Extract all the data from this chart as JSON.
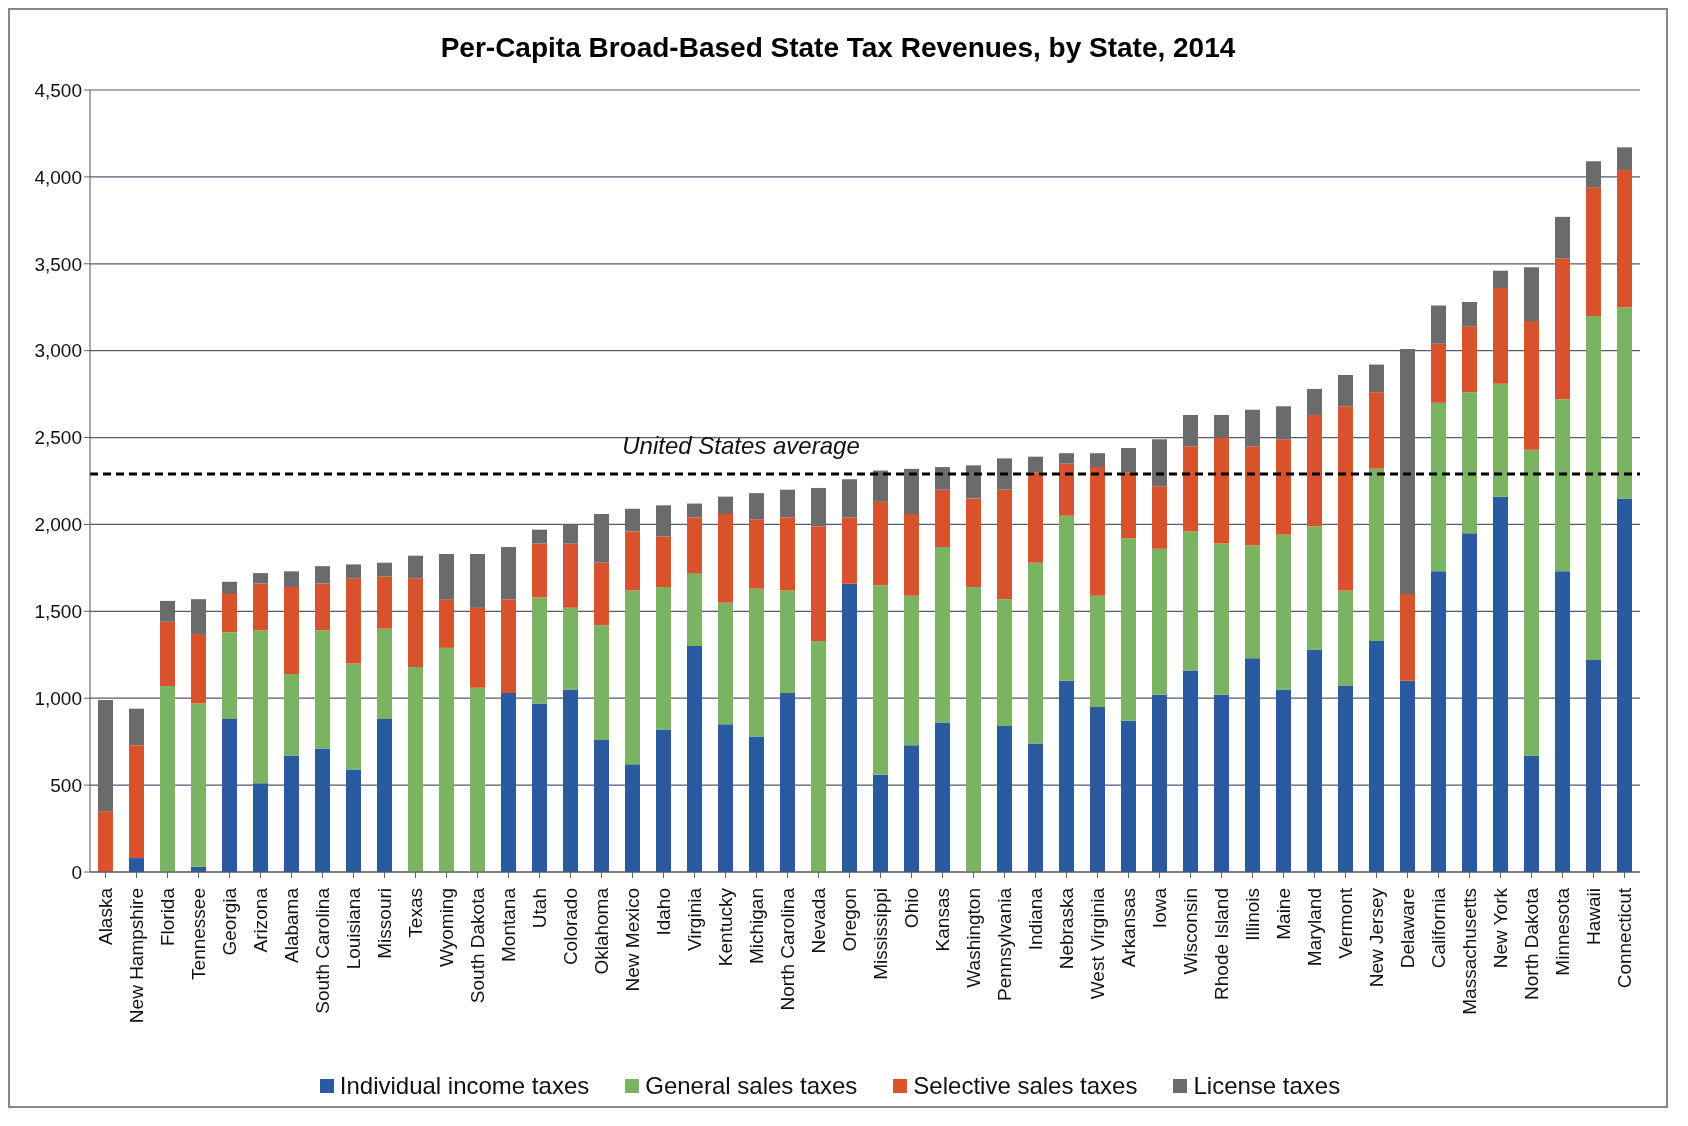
{
  "chart_data": {
    "type": "bar",
    "title": "Per-Capita Broad-Based State Tax Revenues, by State, 2014",
    "stacked": true,
    "grid": "y",
    "legend": "bottom",
    "categories": [
      "Alaska",
      "New Hampshire",
      "Florida",
      "Tennessee",
      "Georgia",
      "Arizona",
      "Alabama",
      "South Carolina",
      "Louisiana",
      "Missouri",
      "Texas",
      "Wyoming",
      "South Dakota",
      "Montana",
      "Utah",
      "Colorado",
      "Oklahoma",
      "New Mexico",
      "Idaho",
      "Virginia",
      "Kentucky",
      "Michigan",
      "North Carolina",
      "Nevada",
      "Oregon",
      "Mississippi",
      "Ohio",
      "Kansas",
      "Washington",
      "Pennsylvania",
      "Indiana",
      "Nebraska",
      "West Virginia",
      "Arkansas",
      "Iowa",
      "Wisconsin",
      "Rhode Island",
      "Illinois",
      "Maine",
      "Maryland",
      "Vermont",
      "New Jersey",
      "Delaware",
      "California",
      "Massachusetts",
      "New York",
      "North Dakota",
      "Minnesota",
      "Hawaii",
      "Connecticut"
    ],
    "ylim": [
      0,
      4500
    ],
    "yticks": [
      0,
      500,
      {
        "value": 1000,
        "label": "1,000"
      },
      {
        "value": 1500,
        "label": "1,500"
      },
      {
        "value": 2000,
        "label": "2,000"
      },
      {
        "value": 2500,
        "label": "2,500"
      },
      {
        "value": 3000,
        "label": "3,000"
      },
      {
        "value": 3500,
        "label": "3,500"
      },
      {
        "value": 4000,
        "label": "4,000"
      },
      {
        "value": 4500,
        "label": "4,500"
      }
    ],
    "series": [
      {
        "name": "Individual income taxes",
        "color": "#2a5aa0",
        "values": [
          0,
          80,
          0,
          30,
          880,
          510,
          670,
          710,
          590,
          880,
          0,
          0,
          0,
          1030,
          970,
          1050,
          760,
          620,
          820,
          1300,
          850,
          780,
          1030,
          0,
          1660,
          560,
          730,
          860,
          0,
          840,
          740,
          1100,
          950,
          870,
          1020,
          1160,
          1020,
          1230,
          1050,
          1280,
          1070,
          1330,
          1100,
          1730,
          1950,
          2160,
          670,
          1730,
          1220,
          2150
        ]
      },
      {
        "name": "General sales taxes",
        "color": "#7ab463",
        "values": [
          0,
          0,
          1070,
          940,
          500,
          880,
          470,
          680,
          610,
          520,
          1180,
          1290,
          1060,
          0,
          610,
          470,
          660,
          1000,
          820,
          420,
          700,
          850,
          590,
          1330,
          0,
          1090,
          860,
          1010,
          1640,
          730,
          1040,
          950,
          640,
          1050,
          840,
          800,
          870,
          650,
          890,
          710,
          550,
          990,
          0,
          970,
          810,
          650,
          1760,
          990,
          1980,
          1100
        ]
      },
      {
        "name": "Selective sales taxes",
        "color": "#d8532b",
        "values": [
          350,
          650,
          370,
          400,
          220,
          270,
          500,
          270,
          490,
          300,
          510,
          280,
          460,
          540,
          310,
          370,
          360,
          340,
          290,
          320,
          510,
          400,
          420,
          660,
          380,
          480,
          470,
          330,
          510,
          630,
          520,
          300,
          740,
          380,
          360,
          490,
          610,
          570,
          550,
          640,
          1060,
          440,
          500,
          340,
          380,
          550,
          740,
          810,
          740,
          790
        ]
      },
      {
        "name": "License taxes",
        "color": "#6b6b6b",
        "values": [
          640,
          210,
          120,
          200,
          70,
          60,
          90,
          100,
          80,
          80,
          130,
          260,
          310,
          300,
          80,
          110,
          280,
          130,
          180,
          80,
          100,
          150,
          160,
          220,
          220,
          180,
          260,
          130,
          190,
          180,
          90,
          60,
          80,
          140,
          270,
          180,
          130,
          210,
          190,
          150,
          180,
          160,
          1410,
          220,
          140,
          100,
          310,
          240,
          150,
          130
        ]
      }
    ],
    "ref_lines": [
      {
        "axis": "y",
        "value": 2290,
        "label": "United States average",
        "color": "#000000",
        "line_style": "dashed"
      }
    ]
  }
}
